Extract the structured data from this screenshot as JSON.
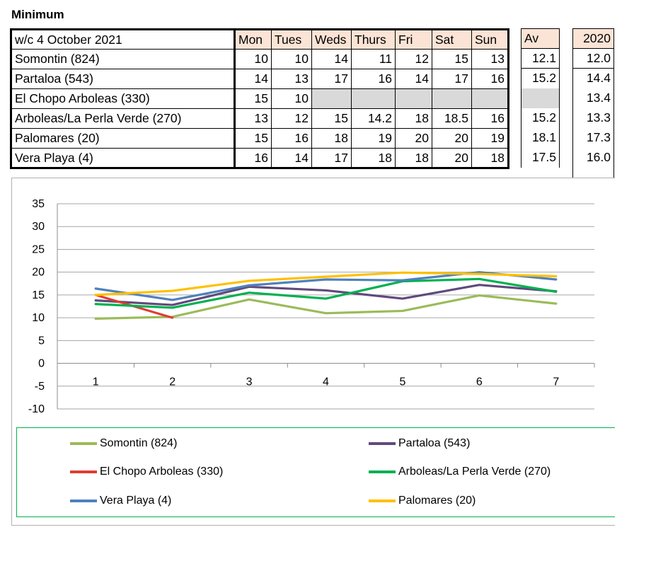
{
  "title": "Minimum",
  "table": {
    "week_label": "w/c 4 October 2021",
    "days": [
      "Mon",
      "Tues",
      "Weds",
      "Thurs",
      "Fri",
      "Sat",
      "Sun"
    ],
    "av_label": "Av",
    "year_label": "2020",
    "rows": [
      {
        "name": "Somontin (824)",
        "values": [
          "10",
          "10",
          "14",
          "11",
          "12",
          "15",
          "13"
        ],
        "av": "12.1",
        "y2020": "12.0"
      },
      {
        "name": "Partaloa (543)",
        "values": [
          "14",
          "13",
          "17",
          "16",
          "14",
          "17",
          "16"
        ],
        "av": "15.2",
        "y2020": "14.4"
      },
      {
        "name": "El Chopo Arboleas (330)",
        "values": [
          "15",
          "10",
          "",
          "",
          "",
          "",
          ""
        ],
        "av": "",
        "y2020": "13.4"
      },
      {
        "name": "Arboleas/La Perla Verde (270)",
        "values": [
          "13",
          "12",
          "15",
          "14.2",
          "18",
          "18.5",
          "16"
        ],
        "av": "15.2",
        "y2020": "13.3"
      },
      {
        "name": "Palomares (20)",
        "values": [
          "15",
          "16",
          "18",
          "19",
          "20",
          "20",
          "19"
        ],
        "av": "18.1",
        "y2020": "17.3"
      },
      {
        "name": "Vera Playa (4)",
        "values": [
          "16",
          "14",
          "17",
          "18",
          "18",
          "20",
          "18"
        ],
        "av": "17.5",
        "y2020": "16.0"
      }
    ]
  },
  "chart_data": {
    "type": "line",
    "x": [
      1,
      2,
      3,
      4,
      5,
      6,
      7
    ],
    "ylim": [
      -10,
      35
    ],
    "yticks": [
      35,
      30,
      25,
      20,
      15,
      10,
      5,
      0,
      -5,
      -10
    ],
    "grid": true,
    "series": [
      {
        "name": "Somontin (824)",
        "color": "#9bbb59",
        "values": [
          9.8,
          10.2,
          14,
          11,
          11.5,
          14.9,
          13.1
        ]
      },
      {
        "name": "Partaloa (543)",
        "color": "#604a7b",
        "values": [
          13.8,
          12.8,
          16.8,
          16,
          14.2,
          17.2,
          15.8
        ]
      },
      {
        "name": "El Chopo Arboleas (330)",
        "color": "#e03c31",
        "values": [
          15,
          10,
          null,
          null,
          null,
          null,
          null
        ]
      },
      {
        "name": "Arboleas/La Perla Verde (270)",
        "color": "#00b050",
        "values": [
          13,
          12.2,
          15.5,
          14.2,
          18,
          18.5,
          15.7
        ]
      },
      {
        "name": "Vera Playa (4)",
        "color": "#4f81bd",
        "values": [
          16.4,
          13.9,
          17.1,
          18.4,
          18.2,
          20,
          18.4
        ]
      },
      {
        "name": "Palomares (20)",
        "color": "#ffc000",
        "values": [
          15,
          15.9,
          18.1,
          19,
          19.9,
          19.6,
          19.1
        ]
      }
    ],
    "legend": [
      {
        "name": "Somontin (824)",
        "color": "#9bbb59"
      },
      {
        "name": "Partaloa (543)",
        "color": "#604a7b"
      },
      {
        "name": "El Chopo Arboleas (330)",
        "color": "#e03c31"
      },
      {
        "name": "Arboleas/La Perla Verde (270)",
        "color": "#00b050"
      },
      {
        "name": "Vera Playa (4)",
        "color": "#4f81bd"
      },
      {
        "name": "Palomares (20)",
        "color": "#ffc000"
      }
    ]
  }
}
